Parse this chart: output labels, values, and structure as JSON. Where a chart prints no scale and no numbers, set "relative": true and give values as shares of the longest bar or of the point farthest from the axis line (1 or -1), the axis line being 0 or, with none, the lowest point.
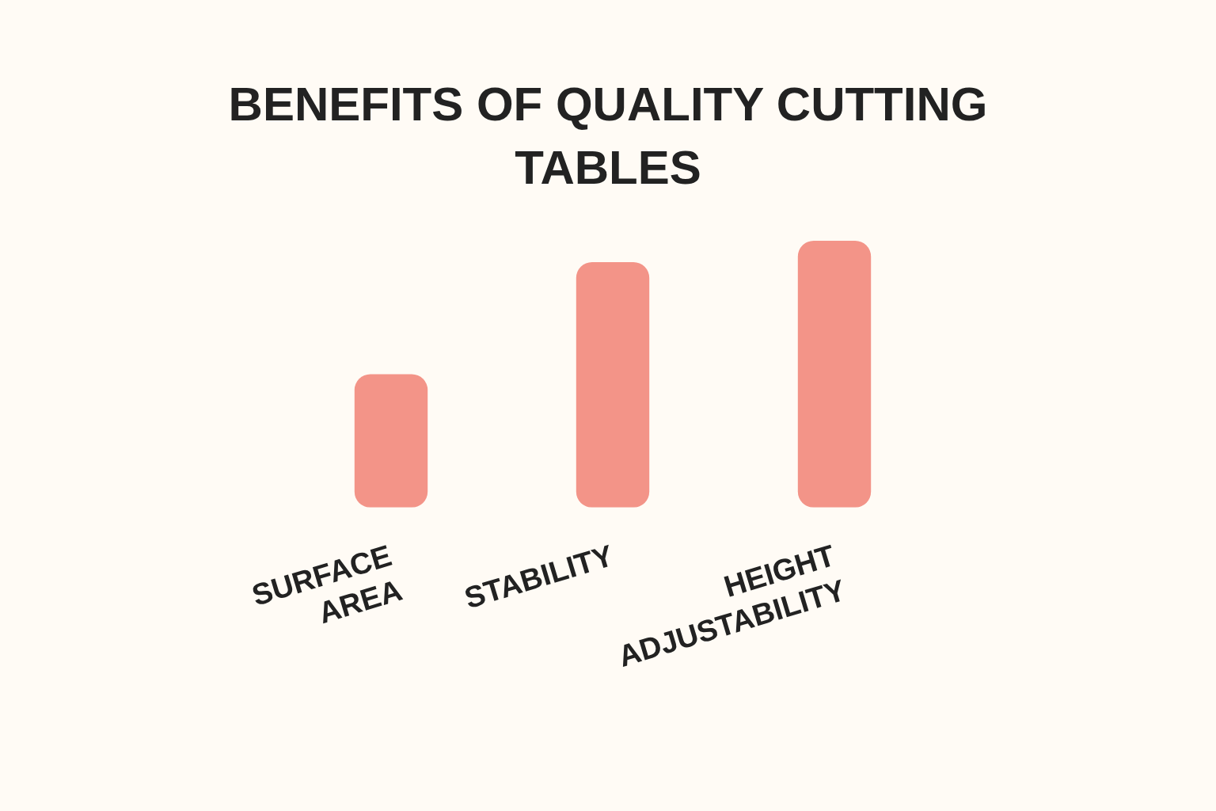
{
  "chart_data": {
    "type": "bar",
    "title": "BENEFITS OF QUALITY CUTTING TABLES",
    "categories": [
      "SURFACE AREA",
      "STABILITY",
      "HEIGHT ADJUSTABILITY"
    ],
    "values": [
      0.5,
      0.92,
      1
    ],
    "color": "#f39488",
    "relative": true,
    "grid": false,
    "legend": false
  }
}
